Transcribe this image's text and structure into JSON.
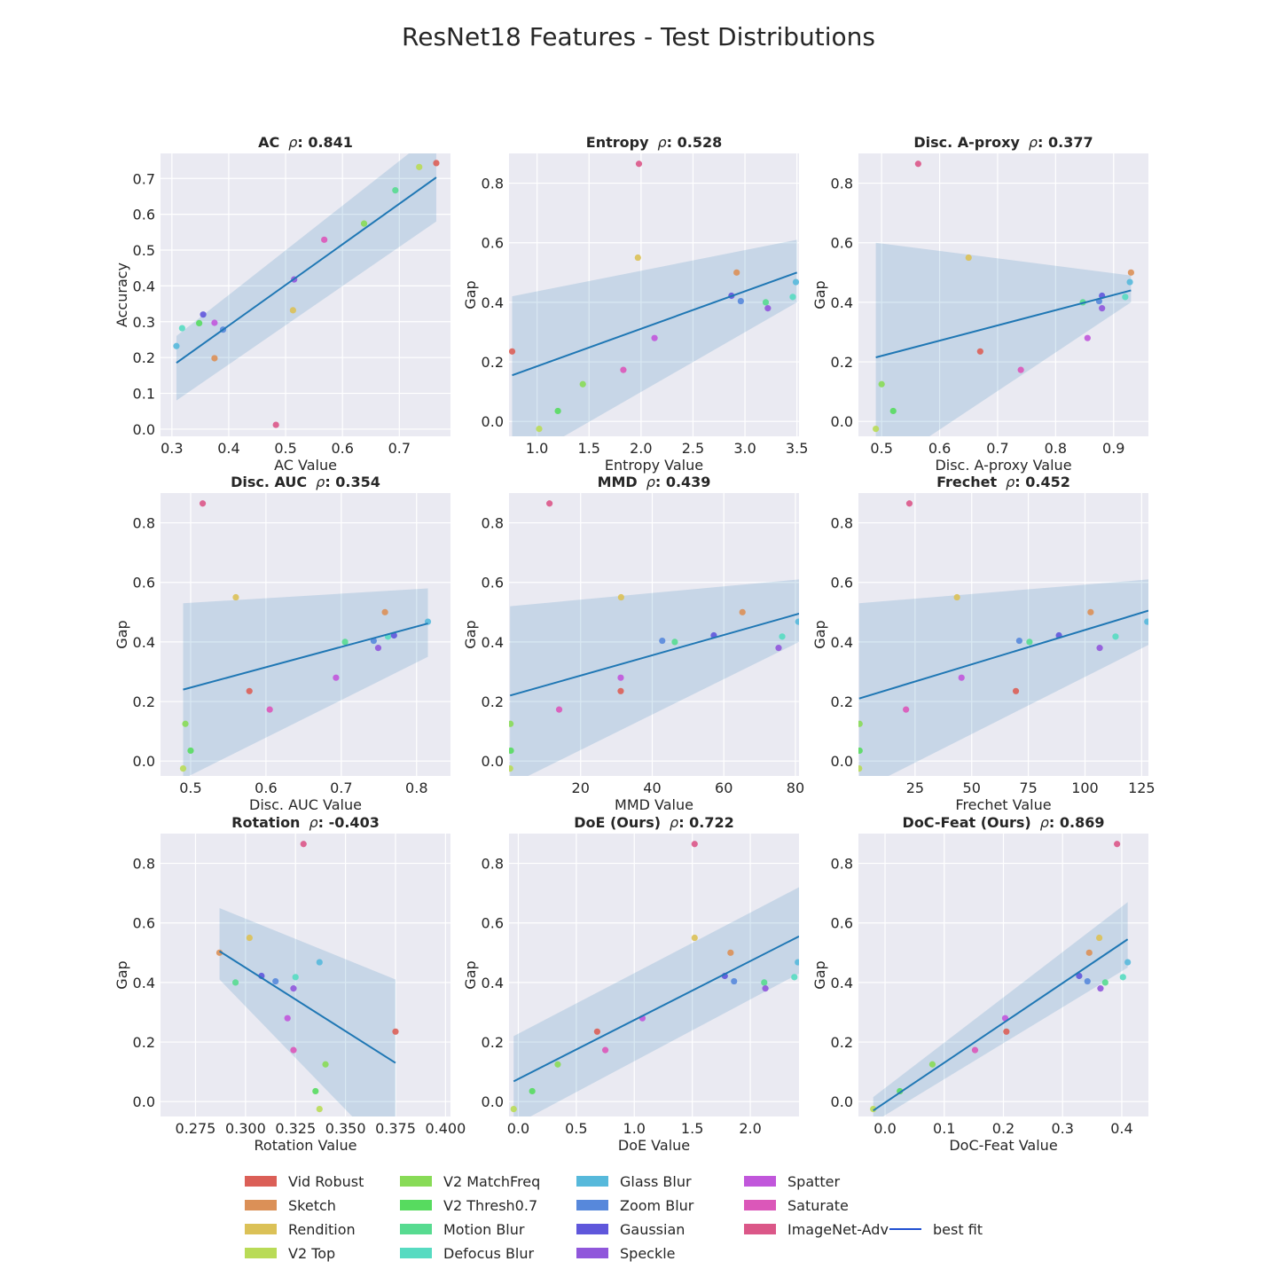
{
  "title": "ResNet18 Features - Test Distributions",
  "legend": {
    "items": [
      {
        "label": "Vid Robust",
        "color": "#db5f57"
      },
      {
        "label": "Sketch",
        "color": "#db9057"
      },
      {
        "label": "Rendition",
        "color": "#dbc157"
      },
      {
        "label": "V2 Top",
        "color": "#b9db57"
      },
      {
        "label": "V2 MatchFreq",
        "color": "#88db57"
      },
      {
        "label": "V2 Thresh0.7",
        "color": "#57db5f"
      },
      {
        "label": "Motion Blur",
        "color": "#57db90"
      },
      {
        "label": "Defocus Blur",
        "color": "#57dbc1"
      },
      {
        "label": "Glass Blur",
        "color": "#57b9db"
      },
      {
        "label": "Zoom Blur",
        "color": "#5788db"
      },
      {
        "label": "Gaussian",
        "color": "#5f57db"
      },
      {
        "label": "Speckle",
        "color": "#9057db"
      },
      {
        "label": "Spatter",
        "color": "#c157db"
      },
      {
        "label": "Saturate",
        "color": "#db57b9"
      },
      {
        "label": "ImageNet-Adv",
        "color": "#db5788"
      }
    ],
    "fit_label": "best fit",
    "fit_color": "#1f4fd1"
  },
  "chart_data": [
    {
      "type": "scatter",
      "name": "AC",
      "rho": "0.841",
      "xlabel": "AC Value",
      "ylabel": "Accuracy",
      "xlim": [
        0.28,
        0.79
      ],
      "ylim": [
        -0.02,
        0.77
      ],
      "xticks": [
        0.3,
        0.4,
        0.5,
        0.6,
        0.7
      ],
      "xtick_labels": [
        "0.3",
        "0.4",
        "0.5",
        "0.6",
        "0.7"
      ],
      "yticks": [
        0,
        0.1,
        0.2,
        0.3,
        0.4,
        0.5,
        0.6,
        0.7
      ],
      "ytick_labels": [
        "0.0",
        "0.1",
        "0.2",
        "0.3",
        "0.4",
        "0.5",
        "0.6",
        "0.7"
      ],
      "x": [
        0.765,
        0.375,
        0.513,
        0.735,
        0.638,
        0.348,
        0.693,
        0.318,
        0.308,
        0.39,
        0.355,
        0.515,
        0.375,
        0.568,
        0.483
      ],
      "y": [
        0.743,
        0.198,
        0.332,
        0.732,
        0.574,
        0.296,
        0.667,
        0.282,
        0.232,
        0.278,
        0.32,
        0.418,
        0.297,
        0.529,
        0.012
      ],
      "fit": {
        "x": [
          0.308,
          0.765
        ],
        "y": [
          0.185,
          0.703
        ],
        "band_lower": [
          0.08,
          0.58
        ],
        "band_upper": [
          0.26,
          0.83
        ]
      }
    },
    {
      "type": "scatter",
      "name": "Entropy",
      "rho": "0.528",
      "xlabel": "Entropy Value",
      "ylabel": "Gap",
      "xlim": [
        0.73,
        3.52
      ],
      "ylim": [
        -0.05,
        0.9
      ],
      "xticks": [
        1.0,
        1.5,
        2.0,
        2.5,
        3.0,
        3.5
      ],
      "xtick_labels": [
        "1.0",
        "1.5",
        "2.0",
        "2.5",
        "3.0",
        "3.5"
      ],
      "yticks": [
        0,
        0.2,
        0.4,
        0.6,
        0.8
      ],
      "ytick_labels": [
        "0.0",
        "0.2",
        "0.4",
        "0.6",
        "0.8"
      ],
      "x": [
        0.76,
        2.92,
        1.97,
        1.02,
        1.44,
        1.2,
        3.2,
        3.46,
        3.49,
        2.96,
        2.87,
        3.22,
        2.13,
        1.83,
        1.98
      ],
      "y": [
        0.235,
        0.5,
        0.55,
        -0.025,
        0.125,
        0.035,
        0.4,
        0.418,
        0.468,
        0.404,
        0.422,
        0.38,
        0.28,
        0.173,
        0.865
      ],
      "fit": {
        "x": [
          0.76,
          3.5
        ],
        "y": [
          0.155,
          0.5
        ],
        "band_lower": [
          -0.15,
          0.4
        ],
        "band_upper": [
          0.42,
          0.61
        ]
      }
    },
    {
      "type": "scatter",
      "name": "Disc. A-proxy",
      "rho": "0.377",
      "xlabel": "Disc. A-proxy Value",
      "ylabel": "Gap",
      "xlim": [
        0.46,
        0.96
      ],
      "ylim": [
        -0.05,
        0.9
      ],
      "xticks": [
        0.5,
        0.6,
        0.7,
        0.8,
        0.9
      ],
      "xtick_labels": [
        "0.5",
        "0.6",
        "0.7",
        "0.8",
        "0.9"
      ],
      "yticks": [
        0,
        0.2,
        0.4,
        0.6,
        0.8
      ],
      "ytick_labels": [
        "0.0",
        "0.2",
        "0.4",
        "0.6",
        "0.8"
      ],
      "x": [
        0.67,
        0.93,
        0.65,
        0.49,
        0.5,
        0.52,
        0.847,
        0.92,
        0.928,
        0.875,
        0.88,
        0.88,
        0.855,
        0.74,
        0.563
      ],
      "y": [
        0.235,
        0.5,
        0.55,
        -0.025,
        0.125,
        0.035,
        0.4,
        0.418,
        0.468,
        0.404,
        0.422,
        0.38,
        0.28,
        0.173,
        0.865
      ],
      "fit": {
        "x": [
          0.49,
          0.93
        ],
        "y": [
          0.215,
          0.44
        ],
        "band_lower": [
          -0.17,
          0.4
        ],
        "band_upper": [
          0.6,
          0.49
        ]
      }
    },
    {
      "type": "scatter",
      "name": "Disc. AUC",
      "rho": "0.354",
      "xlabel": "Disc. AUC Value",
      "ylabel": "Gap",
      "xlim": [
        0.46,
        0.845
      ],
      "ylim": [
        -0.05,
        0.9
      ],
      "xticks": [
        0.5,
        0.6,
        0.7,
        0.8
      ],
      "xtick_labels": [
        "0.5",
        "0.6",
        "0.7",
        "0.8"
      ],
      "yticks": [
        0,
        0.2,
        0.4,
        0.6,
        0.8
      ],
      "ytick_labels": [
        "0.0",
        "0.2",
        "0.4",
        "0.6",
        "0.8"
      ],
      "x": [
        0.578,
        0.758,
        0.56,
        0.49,
        0.493,
        0.5,
        0.705,
        0.762,
        0.815,
        0.743,
        0.77,
        0.749,
        0.693,
        0.605,
        0.516
      ],
      "y": [
        0.235,
        0.5,
        0.55,
        -0.025,
        0.125,
        0.035,
        0.4,
        0.418,
        0.468,
        0.404,
        0.422,
        0.38,
        0.28,
        0.173,
        0.865
      ],
      "fit": {
        "x": [
          0.49,
          0.815
        ],
        "y": [
          0.24,
          0.462
        ],
        "band_lower": [
          -0.06,
          0.35
        ],
        "band_upper": [
          0.53,
          0.58
        ]
      }
    },
    {
      "type": "scatter",
      "name": "MMD",
      "rho": "0.439",
      "xlabel": "MMD Value",
      "ylabel": "Gap",
      "xlim": [
        0,
        81
      ],
      "ylim": [
        -0.05,
        0.9
      ],
      "xticks": [
        20,
        40,
        60,
        80
      ],
      "xtick_labels": [
        "20",
        "40",
        "60",
        "80"
      ],
      "yticks": [
        0,
        0.2,
        0.4,
        0.6,
        0.8
      ],
      "ytick_labels": [
        "0.0",
        "0.2",
        "0.4",
        "0.6",
        "0.8"
      ],
      "x": [
        31.2,
        65.2,
        31.3,
        0.3,
        0.4,
        0.5,
        46.3,
        76.3,
        80.8,
        42.8,
        57.2,
        75.3,
        31.2,
        14,
        11.3
      ],
      "y": [
        0.235,
        0.5,
        0.55,
        -0.025,
        0.125,
        0.035,
        0.4,
        0.418,
        0.468,
        0.404,
        0.422,
        0.38,
        0.28,
        0.173,
        0.865
      ],
      "fit": {
        "x": [
          0.3,
          81
        ],
        "y": [
          0.22,
          0.495
        ],
        "band_lower": [
          -0.08,
          0.4
        ],
        "band_upper": [
          0.52,
          0.61
        ]
      }
    },
    {
      "type": "scatter",
      "name": "Frechet",
      "rho": "0.452",
      "xlabel": "Frechet Value",
      "ylabel": "Gap",
      "xlim": [
        0,
        128
      ],
      "ylim": [
        -0.05,
        0.9
      ],
      "xticks": [
        25,
        50,
        75,
        100,
        125
      ],
      "xtick_labels": [
        "25",
        "50",
        "75",
        "100",
        "125"
      ],
      "yticks": [
        0,
        0.2,
        0.4,
        0.6,
        0.8
      ],
      "ytick_labels": [
        "0.0",
        "0.2",
        "0.4",
        "0.6",
        "0.8"
      ],
      "x": [
        69.5,
        102.5,
        43.5,
        0.3,
        0.5,
        0.5,
        75.5,
        113.5,
        127.5,
        71,
        88.5,
        106.5,
        45.5,
        21,
        22.5
      ],
      "y": [
        0.235,
        0.5,
        0.55,
        -0.025,
        0.125,
        0.035,
        0.4,
        0.418,
        0.468,
        0.404,
        0.422,
        0.38,
        0.28,
        0.173,
        0.865
      ],
      "fit": {
        "x": [
          0.3,
          128
        ],
        "y": [
          0.21,
          0.505
        ],
        "band_lower": [
          -0.1,
          0.39
        ],
        "band_upper": [
          0.53,
          0.61
        ]
      }
    },
    {
      "type": "scatter",
      "name": "Rotation",
      "rho": "-0.403",
      "xlabel": "Rotation Value",
      "ylabel": "Gap",
      "xlim": [
        0.2575,
        0.4025
      ],
      "ylim": [
        -0.05,
        0.9
      ],
      "xticks": [
        0.275,
        0.3,
        0.325,
        0.35,
        0.375,
        0.4
      ],
      "xtick_labels": [
        "0.275",
        "0.300",
        "0.325",
        "0.350",
        "0.375",
        "0.400"
      ],
      "yticks": [
        0,
        0.2,
        0.4,
        0.6,
        0.8
      ],
      "ytick_labels": [
        "0.0",
        "0.2",
        "0.4",
        "0.6",
        "0.8"
      ],
      "x": [
        0.375,
        0.287,
        0.302,
        0.337,
        0.34,
        0.335,
        0.295,
        0.325,
        0.337,
        0.315,
        0.308,
        0.324,
        0.321,
        0.324,
        0.329
      ],
      "y": [
        0.235,
        0.5,
        0.55,
        -0.025,
        0.125,
        0.035,
        0.4,
        0.418,
        0.468,
        0.404,
        0.422,
        0.38,
        0.28,
        0.173,
        0.865
      ],
      "fit": {
        "x": [
          0.287,
          0.375
        ],
        "y": [
          0.505,
          0.13
        ],
        "band_lower": [
          0.41,
          -0.2
        ],
        "band_upper": [
          0.65,
          0.41
        ]
      }
    },
    {
      "type": "scatter",
      "name": "DoE (Ours)",
      "rho": "0.722",
      "xlabel": "DoE Value",
      "ylabel": "Gap",
      "xlim": [
        -0.08,
        2.42
      ],
      "ylim": [
        -0.05,
        0.9
      ],
      "xticks": [
        0,
        0.5,
        1.0,
        1.5,
        2.0
      ],
      "xtick_labels": [
        "0.0",
        "0.5",
        "1.0",
        "1.5",
        "2.0"
      ],
      "yticks": [
        0,
        0.2,
        0.4,
        0.6,
        0.8
      ],
      "ytick_labels": [
        "0.0",
        "0.2",
        "0.4",
        "0.6",
        "0.8"
      ],
      "x": [
        0.68,
        1.83,
        1.52,
        -0.04,
        0.34,
        0.12,
        2.12,
        2.38,
        2.41,
        1.86,
        1.78,
        2.13,
        1.07,
        0.75,
        1.52
      ],
      "y": [
        0.235,
        0.5,
        0.55,
        -0.025,
        0.125,
        0.035,
        0.4,
        0.418,
        0.468,
        0.404,
        0.422,
        0.38,
        0.28,
        0.173,
        0.865
      ],
      "fit": {
        "x": [
          -0.04,
          2.42
        ],
        "y": [
          0.068,
          0.555
        ],
        "band_lower": [
          -0.08,
          0.43
        ],
        "band_upper": [
          0.22,
          0.72
        ]
      }
    },
    {
      "type": "scatter",
      "name": "DoC-Feat (Ours)",
      "rho": "0.869",
      "xlabel": "DoC-Feat Value",
      "ylabel": "Gap",
      "xlim": [
        -0.045,
        0.445
      ],
      "ylim": [
        -0.05,
        0.9
      ],
      "xticks": [
        0,
        0.1,
        0.2,
        0.3,
        0.4
      ],
      "xtick_labels": [
        "0.0",
        "0.1",
        "0.2",
        "0.3",
        "0.4"
      ],
      "yticks": [
        0,
        0.2,
        0.4,
        0.6,
        0.8
      ],
      "ytick_labels": [
        "0.0",
        "0.2",
        "0.4",
        "0.6",
        "0.8"
      ],
      "x": [
        0.205,
        0.345,
        0.362,
        -0.02,
        0.08,
        0.025,
        0.372,
        0.402,
        0.41,
        0.342,
        0.328,
        0.364,
        0.203,
        0.152,
        0.392
      ],
      "y": [
        0.235,
        0.5,
        0.55,
        -0.025,
        0.125,
        0.035,
        0.4,
        0.418,
        0.468,
        0.404,
        0.422,
        0.38,
        0.28,
        0.173,
        0.865
      ],
      "fit": {
        "x": [
          -0.02,
          0.41
        ],
        "y": [
          -0.03,
          0.545
        ],
        "band_lower": [
          -0.07,
          0.45
        ],
        "band_upper": [
          0.015,
          0.67
        ]
      }
    }
  ]
}
